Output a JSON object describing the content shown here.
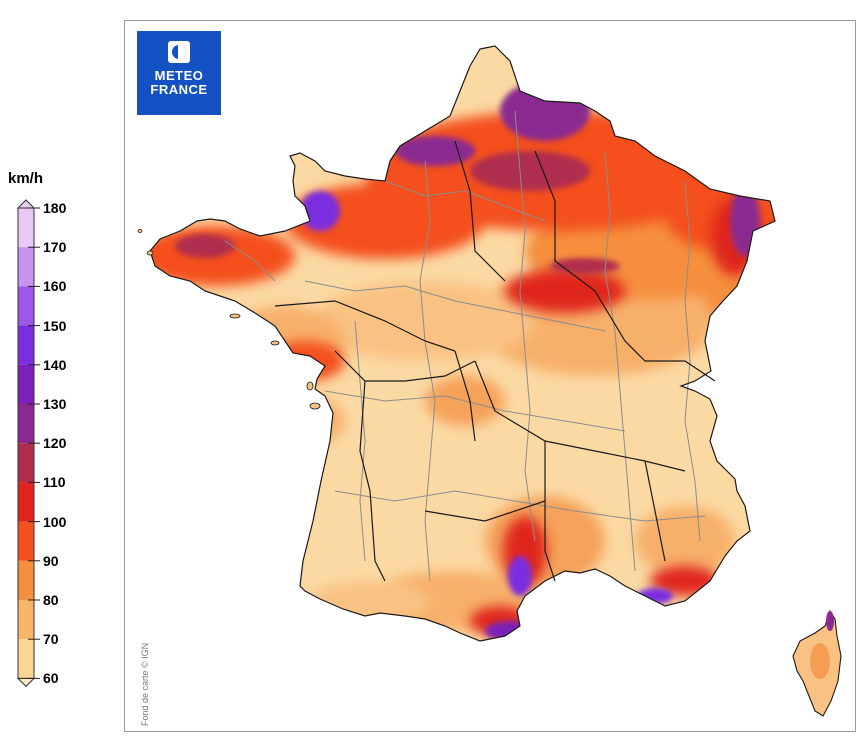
{
  "legend": {
    "unit": "km/h",
    "ticks": [
      "180",
      "170",
      "160",
      "150",
      "140",
      "130",
      "120",
      "110",
      "100",
      "90",
      "80",
      "70",
      "60"
    ],
    "colors": [
      "#e6c9f5",
      "#c994ee",
      "#9f57e8",
      "#7a2ee0",
      "#7d22b8",
      "#8a2990",
      "#b02d4e",
      "#e0261c",
      "#f4501d",
      "#f58f3e",
      "#f8b56a",
      "#fbd594",
      "#fde9bd"
    ]
  },
  "logo": {
    "line1": "METEO",
    "line2": "FRANCE",
    "bg": "#1452c4"
  },
  "credit": "Fond de carte © IGN",
  "map": {
    "land_base": "#fbd9a3",
    "sea": "#ffffff"
  }
}
